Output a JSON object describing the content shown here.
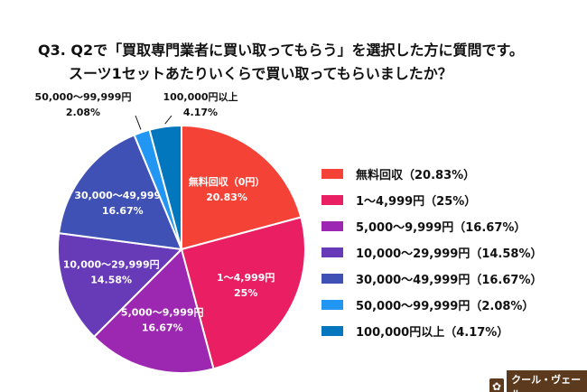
{
  "chart_data": {
    "type": "pie",
    "title": "Q3. Q2で「買取専門業者に買い取ってもらう」を選択した方に質問です。",
    "subtitle": "スーツ1セットあたりいくらで買い取ってもらいましたか？",
    "slices": [
      {
        "label": "無料回収（0円）",
        "value": 20.83,
        "pct": "20.83%",
        "legend": "無料回収（20.83%）",
        "color": "#f44336"
      },
      {
        "label": "1～4,999円",
        "value": 25,
        "pct": "25%",
        "legend": "1～4,999円（25%）",
        "color": "#e91e63"
      },
      {
        "label": "5,000～9,999円",
        "value": 16.67,
        "pct": "16.67%",
        "legend": "5,000～9,999円（16.67%）",
        "color": "#9c27b0"
      },
      {
        "label": "10,000～29,999円",
        "value": 14.58,
        "pct": "14.58%",
        "legend": "10,000～29,999円（14.58%）",
        "color": "#673ab7"
      },
      {
        "label": "30,000～49,999円",
        "value": 16.67,
        "pct": "16.67%",
        "legend": "30,000～49,999円（16.67%）",
        "color": "#3f51b5"
      },
      {
        "label": "50,000～99,999円",
        "value": 2.08,
        "pct": "2.08%",
        "legend": "50,000～99,999円（2.08%）",
        "color": "#2196f3"
      },
      {
        "label": "100,000円以上",
        "value": 4.17,
        "pct": "4.17%",
        "legend": "100,000円以上（4.17%）",
        "color": "#0277bd"
      }
    ],
    "legend_position": "right"
  },
  "brand": {
    "name": "クール・ヴェール"
  }
}
